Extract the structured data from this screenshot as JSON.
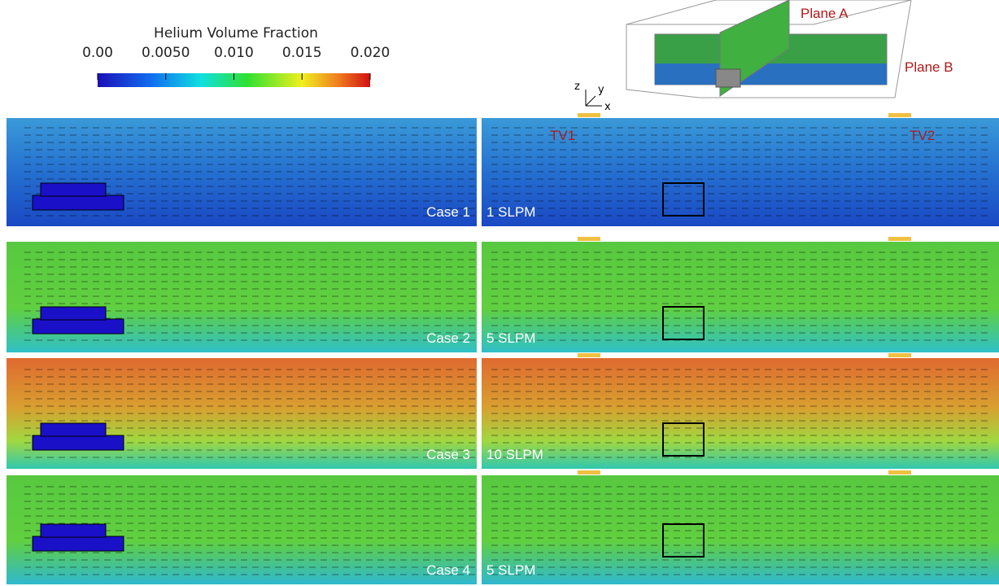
{
  "colorbar": {
    "title": "Helium Volume Fraction",
    "lim": [
      0,
      0.02
    ],
    "ticks": [
      {
        "value": 0,
        "label": "0.00"
      },
      {
        "value": 0.005,
        "label": "0.0050"
      },
      {
        "value": 0.01,
        "label": "0.010"
      },
      0.015,
      {
        "value": 0.02,
        "label": "0.020"
      }
    ]
  },
  "schematic": {
    "plane_a": "Plane A",
    "plane_b": "Plane B",
    "axes": [
      "z",
      "y",
      "x"
    ]
  },
  "vents": {
    "left": "TV1",
    "right": "TV2"
  },
  "panels": [
    {
      "case": "Case 1",
      "flow": "1 SLPM"
    },
    {
      "case": "Case 2",
      "flow": "5 SLPM"
    },
    {
      "case": "Case 3",
      "flow": "10 SLPM"
    },
    {
      "case": "Case 4",
      "flow": "5 SLPM"
    }
  ]
}
